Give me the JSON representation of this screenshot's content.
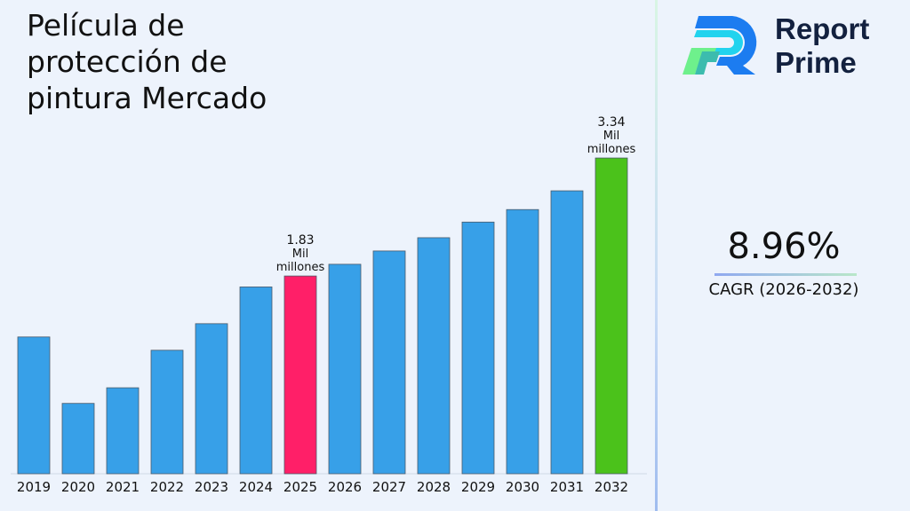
{
  "title": "Película de protección de pintura Mercado",
  "brand": {
    "line1": "Report",
    "line2": "Prime"
  },
  "cagr": {
    "value": "8.96%",
    "label": "CAGR (2026-2032)"
  },
  "colors": {
    "default_bar": "#37a0e8",
    "highlight_2025": "#ff1f68",
    "highlight_2032": "#4bc21b"
  },
  "chart_data": {
    "type": "bar",
    "title": "Película de protección de pintura Mercado",
    "categories": [
      "2019",
      "2020",
      "2021",
      "2022",
      "2023",
      "2024",
      "2025",
      "2026",
      "2027",
      "2028",
      "2029",
      "2030",
      "2031",
      "2032"
    ],
    "values": [
      1.05,
      0.2,
      0.4,
      0.88,
      1.22,
      1.69,
      1.83,
      1.98,
      2.15,
      2.32,
      2.52,
      2.68,
      2.92,
      3.34
    ],
    "unit": "Mil millones",
    "data_labels": [
      {
        "category": "2025",
        "lines": [
          "1.83",
          "Mil",
          "millones"
        ]
      },
      {
        "category": "2032",
        "lines": [
          "3.34",
          "Mil",
          "millones"
        ]
      }
    ],
    "grid": false,
    "legend": "none"
  }
}
